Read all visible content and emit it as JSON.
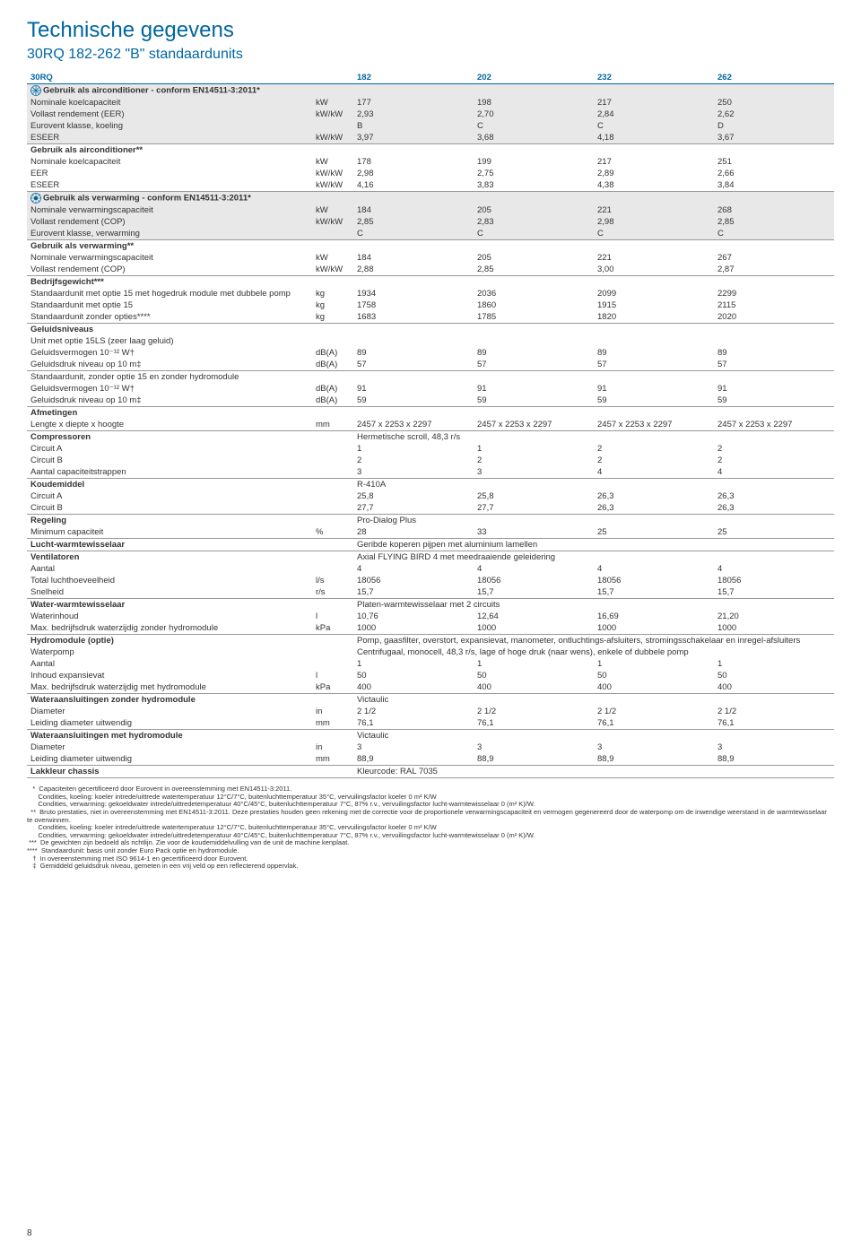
{
  "title": "Technische gegevens",
  "subtitle": "30RQ 182-262 \"B\" standaardunits",
  "page_number": "8",
  "colors": {
    "heading": "#0066a1",
    "grey_row": "#e8e8e8",
    "text": "#333333",
    "rule": "#999999"
  },
  "header": {
    "c0": "30RQ",
    "c1": "",
    "c2": "182",
    "c3": "202",
    "c4": "232",
    "c5": "262"
  },
  "rows": [
    {
      "section": true,
      "grey": true,
      "icon": "snow",
      "label": "Gebruik als airconditioner - conform EN14511-3:2011*"
    },
    {
      "grey": true,
      "label": "Nominale koelcapaciteit",
      "unit": "kW",
      "v": [
        "177",
        "198",
        "217",
        "250"
      ]
    },
    {
      "grey": true,
      "label": "Vollast rendement (EER)",
      "unit": "kW/kW",
      "v": [
        "2,93",
        "2,70",
        "2,84",
        "2,62"
      ]
    },
    {
      "grey": true,
      "label": "Eurovent klasse, koeling",
      "unit": "",
      "v": [
        "B",
        "C",
        "C",
        "D"
      ]
    },
    {
      "grey": true,
      "line": true,
      "label": "ESEER",
      "unit": "kW/kW",
      "v": [
        "3,97",
        "3,68",
        "4,18",
        "3,67"
      ]
    },
    {
      "section": true,
      "label": "Gebruik als airconditioner**"
    },
    {
      "label": "Nominale koelcapaciteit",
      "unit": "kW",
      "v": [
        "178",
        "199",
        "217",
        "251"
      ]
    },
    {
      "label": "EER",
      "unit": "kW/kW",
      "v": [
        "2,98",
        "2,75",
        "2,89",
        "2,66"
      ]
    },
    {
      "line": true,
      "label": "ESEER",
      "unit": "kW/kW",
      "v": [
        "4,16",
        "3,83",
        "4,38",
        "3,84"
      ]
    },
    {
      "section": true,
      "grey": true,
      "icon": "sun",
      "label": "Gebruik als verwarming - conform EN14511-3:2011*"
    },
    {
      "grey": true,
      "label": "Nominale verwarmingscapaciteit",
      "unit": "kW",
      "v": [
        "184",
        "205",
        "221",
        "268"
      ]
    },
    {
      "grey": true,
      "label": "Vollast rendement (COP)",
      "unit": "kW/kW",
      "v": [
        "2,85",
        "2,83",
        "2,98",
        "2,85"
      ]
    },
    {
      "grey": true,
      "line": true,
      "label": "Eurovent klasse, verwarming",
      "unit": "",
      "v": [
        "C",
        "C",
        "C",
        "C"
      ]
    },
    {
      "section": true,
      "label": "Gebruik als verwarming**"
    },
    {
      "label": "Nominale verwarmingscapaciteit",
      "unit": "kW",
      "v": [
        "184",
        "205",
        "221",
        "267"
      ]
    },
    {
      "line": true,
      "label": "Vollast rendement (COP)",
      "unit": "kW/kW",
      "v": [
        "2,88",
        "2,85",
        "3,00",
        "2,87"
      ]
    },
    {
      "section": true,
      "label": "Bedrijfsgewicht***"
    },
    {
      "label": "Standaardunit met optie 15 met hogedruk module met dubbele pomp",
      "unit": "kg",
      "v": [
        "1934",
        "2036",
        "2099",
        "2299"
      ]
    },
    {
      "label": "Standaardunit met optie 15",
      "unit": "kg",
      "v": [
        "1758",
        "1860",
        "1915",
        "2115"
      ]
    },
    {
      "line": true,
      "label": "Standaardunit zonder opties****",
      "unit": "kg",
      "v": [
        "1683",
        "1785",
        "1820",
        "2020"
      ]
    },
    {
      "section": true,
      "label": "Geluidsniveaus"
    },
    {
      "label": "Unit met optie 15LS (zeer laag geluid)"
    },
    {
      "label": "Geluidsvermogen 10⁻¹² W†",
      "unit": "dB(A)",
      "v": [
        "89",
        "89",
        "89",
        "89"
      ]
    },
    {
      "line": true,
      "label": "Geluidsdruk niveau op 10 m‡",
      "unit": "dB(A)",
      "v": [
        "57",
        "57",
        "57",
        "57"
      ]
    },
    {
      "label": "Standaardunit, zonder optie 15 en zonder hydromodule"
    },
    {
      "label": "Geluidsvermogen 10⁻¹² W†",
      "unit": "dB(A)",
      "v": [
        "91",
        "91",
        "91",
        "91"
      ]
    },
    {
      "line": true,
      "label": "Geluidsdruk niveau op 10 m‡",
      "unit": "dB(A)",
      "v": [
        "59",
        "59",
        "59",
        "59"
      ]
    },
    {
      "section": true,
      "label": "Afmetingen"
    },
    {
      "line": true,
      "label": "Lengte x diepte x hoogte",
      "unit": "mm",
      "v": [
        "2457 x 2253 x 2297",
        "2457 x 2253 x 2297",
        "2457 x 2253 x 2297",
        "2457 x 2253 x 2297"
      ]
    },
    {
      "section": true,
      "label": "Compressoren",
      "text": "Hermetische scroll, 48,3 r/s"
    },
    {
      "label": "Circuit A",
      "unit": "",
      "v": [
        "1",
        "1",
        "2",
        "2"
      ]
    },
    {
      "label": "Circuit B",
      "unit": "",
      "v": [
        "2",
        "2",
        "2",
        "2"
      ]
    },
    {
      "line": true,
      "label": "Aantal capaciteitstrappen",
      "unit": "",
      "v": [
        "3",
        "3",
        "4",
        "4"
      ]
    },
    {
      "section": true,
      "label": "Koudemiddel",
      "text": "R-410A"
    },
    {
      "label": "Circuit A",
      "unit": "",
      "v": [
        "25,8",
        "25,8",
        "26,3",
        "26,3"
      ]
    },
    {
      "line": true,
      "label": "Circuit B",
      "unit": "",
      "v": [
        "27,7",
        "27,7",
        "26,3",
        "26,3"
      ]
    },
    {
      "section": true,
      "label": "Regeling",
      "text": "Pro-Dialog Plus"
    },
    {
      "line": true,
      "label": "Minimum capaciteit",
      "unit": "%",
      "v": [
        "28",
        "33",
        "25",
        "25"
      ]
    },
    {
      "section": true,
      "line": true,
      "label": "Lucht-warmtewisselaar",
      "text": "Geribde koperen pijpen met aluminium lamellen"
    },
    {
      "section": true,
      "label": "Ventilatoren",
      "text": "Axial FLYING BIRD 4 met meedraaiende geleidering"
    },
    {
      "label": "Aantal",
      "unit": "",
      "v": [
        "4",
        "4",
        "4",
        "4"
      ]
    },
    {
      "label": "Total luchthoeveelheid",
      "unit": "l/s",
      "v": [
        "18056",
        "18056",
        "18056",
        "18056"
      ]
    },
    {
      "line": true,
      "label": "Snelheid",
      "unit": "r/s",
      "v": [
        "15,7",
        "15,7",
        "15,7",
        "15,7"
      ]
    },
    {
      "section": true,
      "label": "Water-warmtewisselaar",
      "text": "Platen-warmtewisselaar met 2 circuits"
    },
    {
      "label": "Waterinhoud",
      "unit": "l",
      "v": [
        "10,76",
        "12,64",
        "16,69",
        "21,20"
      ]
    },
    {
      "line": true,
      "label": "Max. bedrijfsdruk waterzijdig zonder hydromodule",
      "unit": "kPa",
      "v": [
        "1000",
        "1000",
        "1000",
        "1000"
      ]
    },
    {
      "section": true,
      "label": "Hydromodule (optie)",
      "text": "Pomp, gaasfilter, overstort, expansievat, manometer, ontluchtings-afsluiters, stromingsschakelaar en inregel-afsluiters"
    },
    {
      "label": "Waterpomp",
      "text": "Centrifugaal, monocell, 48,3 r/s, lage of hoge druk (naar wens), enkele of dubbele pomp"
    },
    {
      "label": "Aantal",
      "unit": "",
      "v": [
        "1",
        "1",
        "1",
        "1"
      ]
    },
    {
      "label": "Inhoud expansievat",
      "unit": "l",
      "v": [
        "50",
        "50",
        "50",
        "50"
      ]
    },
    {
      "line": true,
      "label": "Max. bedrijfsdruk waterzijdig met hydromodule",
      "unit": "kPa",
      "v": [
        "400",
        "400",
        "400",
        "400"
      ]
    },
    {
      "section": true,
      "label": "Wateraansluitingen zonder hydromodule",
      "text": "Victaulic"
    },
    {
      "label": "Diameter",
      "unit": "in",
      "v": [
        "2 1/2",
        "2 1/2",
        "2 1/2",
        "2 1/2"
      ]
    },
    {
      "line": true,
      "label": "Leiding diameter uitwendig",
      "unit": "mm",
      "v": [
        "76,1",
        "76,1",
        "76,1",
        "76,1"
      ]
    },
    {
      "section": true,
      "label": "Wateraansluitingen met hydromodule",
      "text": "Victaulic"
    },
    {
      "label": "Diameter",
      "unit": "in",
      "v": [
        "3",
        "3",
        "3",
        "3"
      ]
    },
    {
      "line": true,
      "label": "Leiding diameter uitwendig",
      "unit": "mm",
      "v": [
        "88,9",
        "88,9",
        "88,9",
        "88,9"
      ]
    },
    {
      "section": true,
      "line": true,
      "label": "Lakkleur chassis",
      "text": "Kleurcode: RAL 7035"
    }
  ],
  "footnotes": [
    "   *  Capaciteiten gecertificeerd door Eurovent in overeenstemming met EN14511-3:2011.",
    "      Condities, koeling: koeler intrede/uittrede watertemperatuur 12°C/7°C, buitenluchttemperatuur 35°C, vervuilingsfactor koeler 0 m² K/W",
    "      Condities, verwarming: gekoeldwater intrede/uittredetemperatuur 40°C/45°C, buitenluchttemperatuur 7°C, 87% r.v., vervuilingsfactor lucht-warmtewisselaar 0 (m² K)/W.",
    "  **  Bruto prestaties, niet in overeenstemming met EN14511-3:2011. Deze prestaties houden geen rekening met de correctie voor de proportionele verwarmingscapaciteit en vermogen gegenereerd door de waterpomp om de inwendige weerstand in de warmtewisselaar te overwinnen.",
    "      Condities, koeling: koeler intrede/uittrede watertemperatuur 12°C/7°C, buitenluchttemperatuur 35°C, vervuilingsfactor koeler 0 m² K/W",
    "      Condities, verwarming: gekoeldwater intrede/uittredetemperatuur 40°C/45°C, buitenluchttemperatuur 7°C, 87% r.v., vervuilingsfactor lucht-warmtewisselaar 0 (m² K)/W.",
    " ***  De gewichten zijn bedoeld als richtlijn. Zie voor de koudemiddelvulling van de unit de machine kenplaat.",
    "****  Standaardunit: basis unit zonder Euro Pack optie en hydromodule.",
    "   †  In overeenstemming met ISO 9614-1 en gecertificeerd door Eurovent.",
    "   ‡  Gemiddeld geluidsdruk niveau, gemeten in een vrij veld op een reflecterend oppervlak."
  ]
}
